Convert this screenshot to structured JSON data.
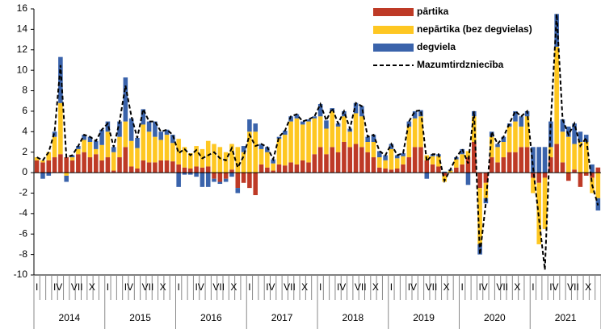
{
  "chart_data": {
    "type": "bar",
    "stacked": true,
    "categories": [
      "I",
      null,
      null,
      "IV",
      null,
      null,
      "VII",
      null,
      null,
      "X",
      null,
      null,
      "I",
      null,
      null,
      "IV",
      null,
      null,
      "VII",
      null,
      null,
      "X",
      null,
      null,
      "I",
      null,
      null,
      "IV",
      null,
      null,
      "VII",
      null,
      null,
      "X",
      null,
      null,
      "I",
      null,
      null,
      "IV",
      null,
      null,
      "VII",
      null,
      null,
      "X",
      null,
      null,
      "I",
      null,
      null,
      "IV",
      null,
      null,
      "VII",
      null,
      null,
      "X",
      null,
      null,
      "I",
      null,
      null,
      "IV",
      null,
      null,
      "VII",
      null,
      null,
      "X",
      null,
      null,
      "I",
      null,
      null,
      "IV",
      null,
      null,
      "VII",
      null,
      null,
      "X",
      null,
      null,
      "I",
      null,
      null,
      "IV",
      null,
      null,
      "VII",
      null,
      null,
      "X",
      null,
      null
    ],
    "years": [
      "2014",
      "2015",
      "2016",
      "2017",
      "2018",
      "2019",
      "2020",
      "2021"
    ],
    "ylim": [
      -10,
      16
    ],
    "yticks": [
      -10,
      -8,
      -6,
      -4,
      -2,
      0,
      2,
      4,
      6,
      8,
      10,
      12,
      14,
      16
    ],
    "grid": false,
    "legend": "top-right",
    "series": [
      {
        "name": "pārtika",
        "color": "#be3a26",
        "values": [
          1.2,
          1.0,
          1.2,
          1.5,
          1.8,
          1.5,
          1.2,
          1.8,
          2.0,
          1.5,
          1.8,
          1.2,
          1.5,
          0.2,
          1.5,
          2.5,
          0.6,
          0.4,
          1.2,
          1.0,
          1.0,
          1.2,
          1.2,
          1.1,
          0.8,
          0.5,
          0.4,
          0.6,
          0.5,
          0.6,
          -0.6,
          -0.9,
          -0.6,
          0.3,
          -1.5,
          -1.0,
          -1.5,
          -2.2,
          0.8,
          0.5,
          0.2,
          0.8,
          0.7,
          1.0,
          0.8,
          1.2,
          1.0,
          1.8,
          2.5,
          1.8,
          2.5,
          2.0,
          3.0,
          2.5,
          2.8,
          2.5,
          2.0,
          1.5,
          0.5,
          0.4,
          0.3,
          0.4,
          0.8,
          1.5,
          2.5,
          2.5,
          1.2,
          0.8,
          0.6,
          -0.3,
          0,
          0.5,
          0.8,
          1.5,
          3.0,
          -1.5,
          -1.0,
          1.5,
          1.0,
          1.5,
          2.0,
          2.0,
          2.5,
          2.5,
          -0.5,
          -1.0,
          -0.5,
          1.5,
          2.8,
          1.0,
          -0.8,
          0.3,
          -1.4,
          -0.3,
          -0.5,
          0.5
        ]
      },
      {
        "name": "nepārtika (bez degvielas)",
        "color": "#fec722",
        "values": [
          0.3,
          0.2,
          0.8,
          2,
          5,
          -0.3,
          0.3,
          0.5,
          1.2,
          1.5,
          0.5,
          1.5,
          2.5,
          1.8,
          2,
          2.5,
          2.5,
          2.0,
          3.5,
          3.0,
          2.5,
          2.0,
          2.5,
          1.8,
          2.5,
          2,
          1.5,
          2,
          1.8,
          2.5,
          2.8,
          2.5,
          2.0,
          2.5,
          2.5,
          2.0,
          4,
          4,
          1.5,
          1.5,
          0.7,
          2.5,
          3,
          4,
          4.5,
          3.5,
          4,
          3.5,
          3.0,
          2.5,
          3.5,
          2.5,
          2.5,
          1.5,
          3.0,
          3.0,
          1.0,
          1.5,
          1.0,
          0.8,
          2.0,
          1.0,
          0.8,
          3.0,
          2.8,
          3.0,
          0.5,
          0.8,
          1.0,
          -0.6,
          0.2,
          0.8,
          1.0,
          0.6,
          2.5,
          -5.5,
          -1.5,
          2.0,
          1.5,
          1.5,
          2.5,
          3.0,
          2.0,
          3.0,
          -1.5,
          -6,
          -5,
          1,
          9.5,
          3,
          3.5,
          2.5,
          3,
          3,
          -1.5,
          -2.5
        ]
      },
      {
        "name": "degviela",
        "color": "#3a63ab",
        "values": [
          0,
          -0.6,
          -0.3,
          0.5,
          4.5,
          -0.6,
          0.2,
          0.3,
          0.5,
          0.5,
          0.8,
          1.5,
          1,
          0.5,
          1.5,
          4.3,
          2.2,
          1.0,
          1.5,
          1.0,
          1.5,
          0.8,
          0.5,
          0.8,
          -1.4,
          -0.2,
          -0.2,
          -0.4,
          -1.4,
          -1.4,
          -0.3,
          -0.2,
          -0.3,
          -0.4,
          -0.5,
          0.6,
          1.2,
          0.8,
          0.5,
          0.5,
          0.4,
          0.2,
          0.4,
          0.5,
          0.4,
          0.3,
          0.2,
          0.2,
          1.2,
          0.8,
          0.3,
          0.3,
          0.5,
          0.3,
          1.0,
          1.0,
          0.5,
          0.7,
          0.6,
          0.5,
          0.5,
          0.3,
          0.3,
          0.5,
          0.7,
          0.6,
          -0.6,
          0.2,
          0.2,
          0.1,
          0.1,
          0.2,
          0.5,
          -1.2,
          0.5,
          -1.0,
          -0.5,
          0.5,
          0.3,
          0.5,
          0.3,
          1.0,
          1.0,
          0.5,
          2.5,
          2.5,
          2.5,
          2.5,
          3.2,
          1.2,
          1.0,
          2.0,
          1.0,
          0.7,
          0.8,
          -1.2
        ]
      },
      {
        "name": "Mazumtirdzniecība",
        "type": "line",
        "color": "#000000",
        "dashed": true,
        "values": [
          1.5,
          1.2,
          2.0,
          4.0,
          10.5,
          1.5,
          1.7,
          2.6,
          3.7,
          3.5,
          3.1,
          4.2,
          4.8,
          2.5,
          5.0,
          8.5,
          5.5,
          3.4,
          6.2,
          5.0,
          5.0,
          4.0,
          4.2,
          3.7,
          1.9,
          2.3,
          1.7,
          2.2,
          1.4,
          1.7,
          2.0,
          1.4,
          1.2,
          2.4,
          0.5,
          1.6,
          3.7,
          2.6,
          2.8,
          2.5,
          1.3,
          3.5,
          4.1,
          5.5,
          5.7,
          5.0,
          5.2,
          5.5,
          6.7,
          5.1,
          6.3,
          4.8,
          6.0,
          4.3,
          6.8,
          6.5,
          3.5,
          3.7,
          2.1,
          1.7,
          2.8,
          1.7,
          1.9,
          5.0,
          6.0,
          6.1,
          1.1,
          1.8,
          1.8,
          -0.8,
          0.3,
          1.5,
          2.3,
          0.9,
          6.0,
          -8.0,
          -3.0,
          4.0,
          2.8,
          3.5,
          4.8,
          6.0,
          5.5,
          6.0,
          0.5,
          -4.5,
          -9.5,
          5,
          15.5,
          5.2,
          3.7,
          4.8,
          2.6,
          3.4,
          -1.2,
          -3.2
        ]
      }
    ]
  }
}
